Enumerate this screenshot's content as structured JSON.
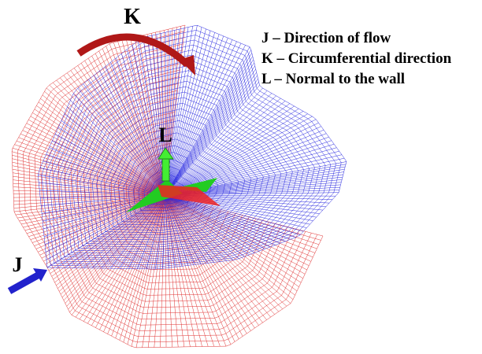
{
  "labels": {
    "k": "K",
    "l": "L",
    "j": "J"
  },
  "legend": [
    "J – Direction of flow",
    "K – Circumferential direction",
    "L – Normal to the wall"
  ]
}
